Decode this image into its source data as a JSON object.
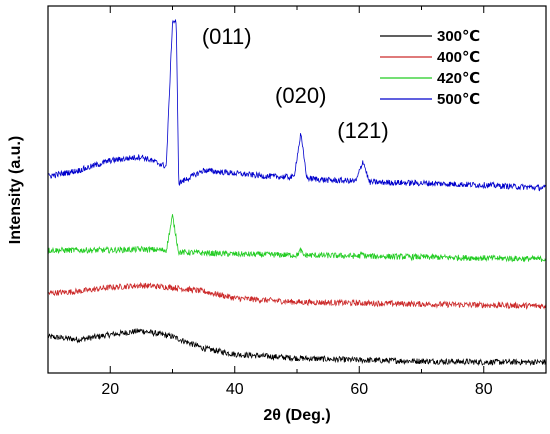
{
  "chart_data": {
    "type": "line",
    "xlabel": "2θ  (Deg.)",
    "ylabel": "Intensity (a.u.)",
    "xlim": [
      10,
      90
    ],
    "y_ticks_shown": false,
    "x_ticks": [
      20,
      40,
      60,
      80
    ],
    "grid": false,
    "legend_position": "top-right",
    "series": [
      {
        "name": "300℃",
        "color": "#000000",
        "offset": 0,
        "points": [
          [
            10,
            30
          ],
          [
            15,
            27
          ],
          [
            20,
            32
          ],
          [
            25,
            36
          ],
          [
            30,
            30
          ],
          [
            35,
            18
          ],
          [
            40,
            12
          ],
          [
            50,
            8
          ],
          [
            60,
            6
          ],
          [
            70,
            5
          ],
          [
            80,
            4
          ],
          [
            90,
            4
          ]
        ]
      },
      {
        "name": "400℃",
        "color": "#cc2a2a",
        "offset": 1,
        "points": [
          [
            10,
            14
          ],
          [
            15,
            16
          ],
          [
            20,
            20
          ],
          [
            25,
            22
          ],
          [
            30,
            20
          ],
          [
            35,
            16
          ],
          [
            40,
            9
          ],
          [
            50,
            5
          ],
          [
            60,
            4
          ],
          [
            70,
            3
          ],
          [
            80,
            2
          ],
          [
            90,
            1
          ]
        ]
      },
      {
        "name": "420℃",
        "color": "#22cc22",
        "offset": 2,
        "points": [
          [
            10,
            10
          ],
          [
            20,
            10
          ],
          [
            25,
            11
          ],
          [
            29,
            10
          ],
          [
            30,
            45
          ],
          [
            31,
            8
          ],
          [
            40,
            6
          ],
          [
            50,
            5
          ],
          [
            50.6,
            10
          ],
          [
            51,
            5
          ],
          [
            60,
            4
          ],
          [
            60.5,
            6
          ],
          [
            61,
            4
          ],
          [
            70,
            3
          ],
          [
            80,
            2
          ],
          [
            90,
            1
          ]
        ]
      },
      {
        "name": "500℃",
        "color": "#0000cc",
        "offset": 3,
        "points": [
          [
            10,
            12
          ],
          [
            15,
            18
          ],
          [
            20,
            28
          ],
          [
            25,
            32
          ],
          [
            29,
            22
          ],
          [
            30,
            170
          ],
          [
            30.6,
            170
          ],
          [
            31,
            5
          ],
          [
            35,
            18
          ],
          [
            40,
            15
          ],
          [
            45,
            12
          ],
          [
            49.5,
            11
          ],
          [
            50.6,
            55
          ],
          [
            51.6,
            10
          ],
          [
            55,
            8
          ],
          [
            59.5,
            7
          ],
          [
            60.6,
            28
          ],
          [
            61.6,
            6
          ],
          [
            70,
            5
          ],
          [
            80,
            3
          ],
          [
            90,
            0
          ]
        ]
      }
    ],
    "annotations": [
      {
        "text": "(011)",
        "x": 31
      },
      {
        "text": "(020)",
        "x": 50.6
      },
      {
        "text": "(121)",
        "x": 60.6
      }
    ]
  }
}
